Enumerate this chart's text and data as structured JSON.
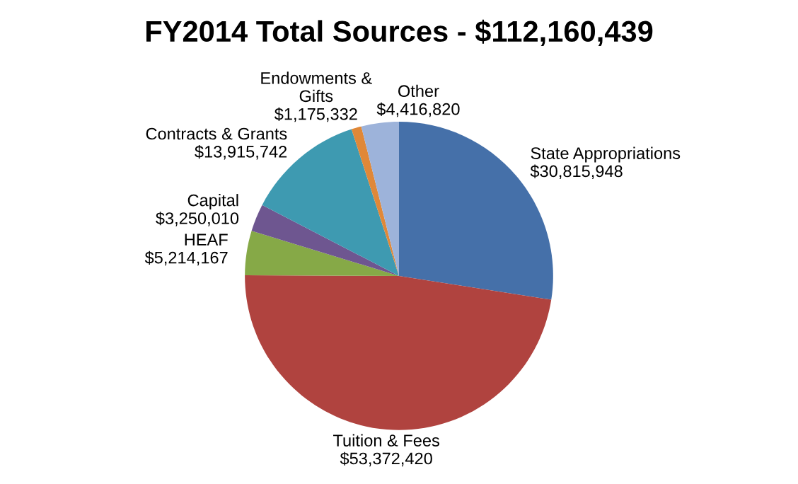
{
  "chart_data": {
    "type": "pie",
    "title": "FY2014 Total Sources - $112,160,439",
    "categories": [
      "State Appropriations",
      "Tuition & Fees",
      "HEAF",
      "Capital",
      "Contracts & Grants",
      "Endowments & Gifts",
      "Other"
    ],
    "values": [
      30815948,
      53372420,
      5214167,
      3250010,
      13915742,
      1175332,
      4416820
    ],
    "value_labels": [
      "$30,815,948",
      "$53,372,420",
      "$5,214,167",
      "$3,250,010",
      "$13,915,742",
      "$1,175,332",
      "$4,416,820"
    ],
    "colors": [
      "#4570a9",
      "#b0433f",
      "#86a947",
      "#6e5690",
      "#3e9ab1",
      "#e08838",
      "#9db3da"
    ],
    "legend": false
  }
}
